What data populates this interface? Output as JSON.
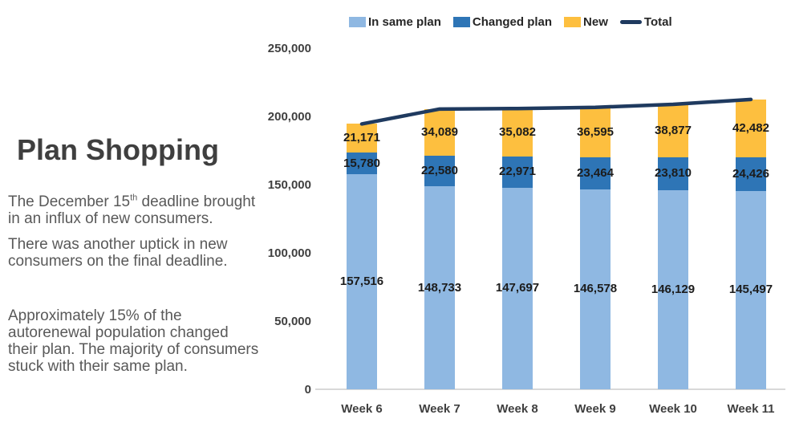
{
  "left_panel": {
    "title": "Plan Shopping",
    "para1_before": "The December 15",
    "para1_sup": "th",
    "para1_after": " deadline brought\nin an influx of new consumers.",
    "para2": "There was another uptick in new\nconsumers on the final deadline.",
    "para3": "Approximately 15% of the\nautorenewal population changed\ntheir plan. The majority of consumers\nstuck with their same plan."
  },
  "chart_data": {
    "type": "bar",
    "stacked": true,
    "gridlines": false,
    "legend_position": "top",
    "categories": [
      "Week 6",
      "Week 7",
      "Week 8",
      "Week 9",
      "Week 10",
      "Week 11"
    ],
    "series": [
      {
        "name": "In same plan",
        "color": "#8FB8E2",
        "values": [
          157516,
          148733,
          147697,
          146578,
          146129,
          145497
        ]
      },
      {
        "name": "Changed plan",
        "color": "#2E75B6",
        "values": [
          15780,
          22580,
          22971,
          23464,
          23810,
          24426
        ]
      },
      {
        "name": "New",
        "color": "#FDBF3F",
        "values": [
          21171,
          34089,
          35082,
          36595,
          38877,
          42482
        ]
      }
    ],
    "line_series": {
      "name": "Total",
      "color": "#1F3A5F",
      "values": [
        194467,
        205402,
        205750,
        206637,
        208816,
        212405
      ]
    },
    "y_axis": {
      "min": 0,
      "max": 250000,
      "tick_step": 50000,
      "tick_labels": [
        "0",
        "50,000",
        "100,000",
        "150,000",
        "200,000",
        "250,000"
      ]
    }
  }
}
